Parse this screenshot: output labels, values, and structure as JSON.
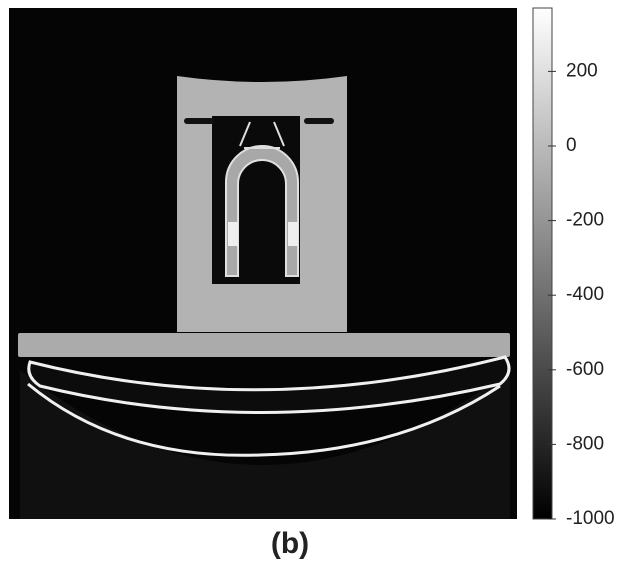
{
  "colorbar": {
    "range": [
      -1000,
      370
    ],
    "ticks": [
      200,
      0,
      -200,
      -400,
      -600,
      -800,
      -1000
    ]
  },
  "caption": "(b)"
}
